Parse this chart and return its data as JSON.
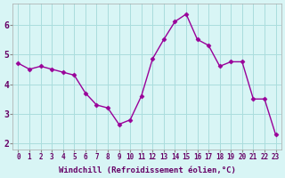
{
  "x": [
    0,
    1,
    2,
    3,
    4,
    5,
    6,
    7,
    8,
    9,
    10,
    11,
    12,
    13,
    14,
    15,
    16,
    17,
    18,
    19,
    20,
    21,
    22,
    23
  ],
  "y": [
    4.7,
    4.5,
    4.6,
    4.5,
    4.4,
    4.3,
    3.7,
    3.3,
    3.2,
    2.65,
    2.8,
    3.6,
    4.85,
    5.5,
    6.1,
    6.35,
    5.5,
    5.3,
    4.6,
    4.75,
    4.75,
    3.5,
    3.5,
    2.3
  ],
  "x_ticks": [
    0,
    1,
    2,
    3,
    4,
    5,
    6,
    7,
    8,
    9,
    10,
    11,
    12,
    13,
    14,
    15,
    16,
    17,
    18,
    19,
    20,
    21,
    22,
    23
  ],
  "x_tick_labels": [
    "0",
    "1",
    "2",
    "3",
    "4",
    "5",
    "6",
    "7",
    "8",
    "9",
    "10",
    "11",
    "12",
    "13",
    "14",
    "15",
    "16",
    "17",
    "18",
    "19",
    "20",
    "21",
    "22",
    "23"
  ],
  "y_ticks": [
    2,
    3,
    4,
    5,
    6
  ],
  "xlabel": "Windchill (Refroidissement éolien,°C)",
  "ylim": [
    1.8,
    6.7
  ],
  "xlim": [
    -0.5,
    23.5
  ],
  "line_color": "#990099",
  "marker_color": "#990099",
  "bg_color": "#d8f5f5",
  "grid_color": "#aadddd",
  "tick_label_color": "#660066",
  "xlabel_color": "#660066"
}
